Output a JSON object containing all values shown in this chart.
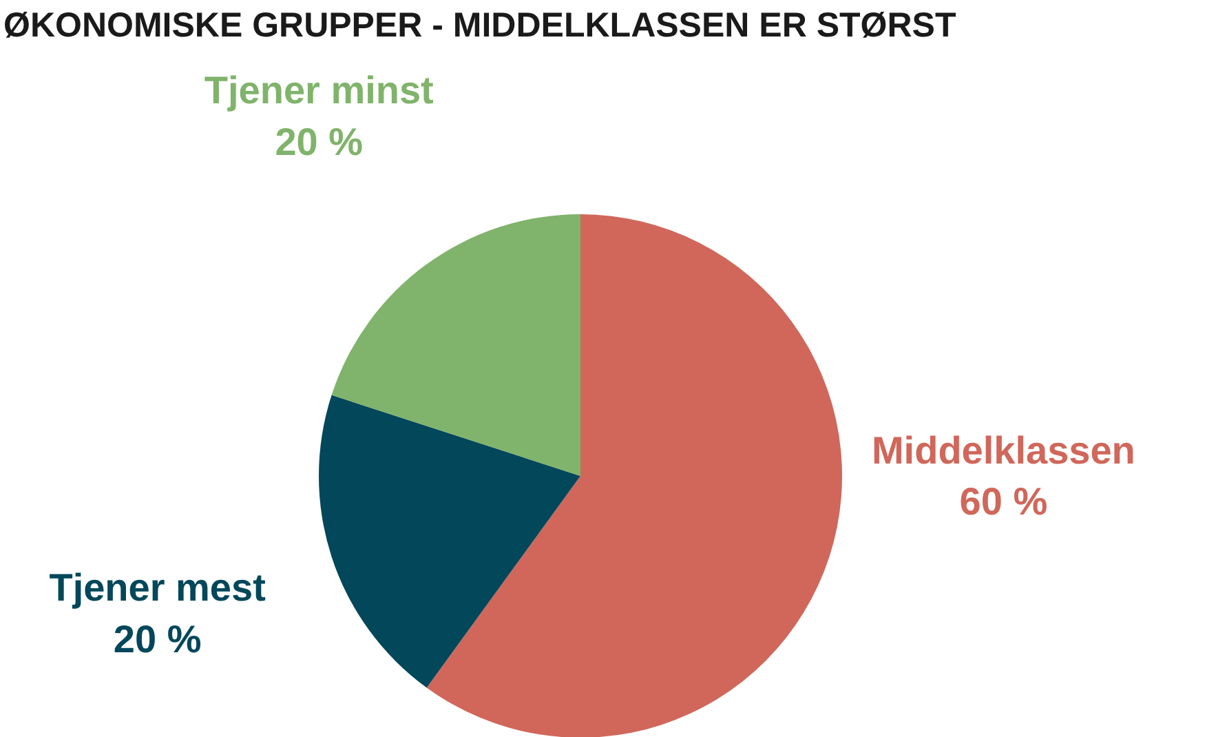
{
  "chart_data": {
    "type": "pie",
    "title": "ØKONOMISKE GRUPPER - MIDDELKLASSEN ER STØRST",
    "categories": [
      "Middelklassen",
      "Tjener mest",
      "Tjener minst"
    ],
    "values": [
      60,
      20,
      20
    ],
    "value_labels": [
      "60 %",
      "20 %",
      "20 %"
    ],
    "colors": [
      "#d0675a",
      "#03475a",
      "#80b36b"
    ]
  }
}
